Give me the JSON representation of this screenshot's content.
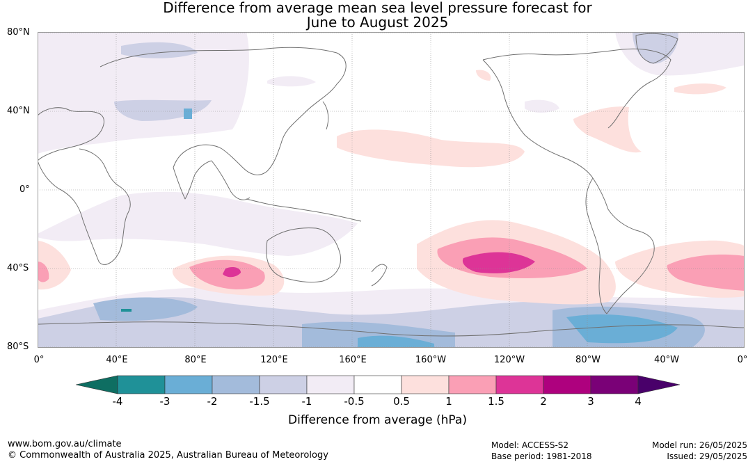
{
  "title_line1": "Difference from average mean sea level pressure forecast for",
  "title_line2": "June to August 2025",
  "lat_labels": [
    "80°N",
    "40°N",
    "0°",
    "40°S",
    "80°S"
  ],
  "lon_labels": [
    "0°",
    "40°E",
    "80°E",
    "120°E",
    "160°E",
    "160°W",
    "120°W",
    "80°W",
    "40°W",
    "0°"
  ],
  "colorbar": {
    "ticks": [
      "-4",
      "-3",
      "-2",
      "-1.5",
      "-1",
      "-0.5",
      "0.5",
      "1",
      "1.5",
      "2",
      "3",
      "4"
    ],
    "colors": [
      "#0e6e62",
      "#1f9198",
      "#6aaed6",
      "#a3bbdb",
      "#cdd0e5",
      "#f2ecf5",
      "#ffffff",
      "#fde0dd",
      "#fa9fb5",
      "#dd3497",
      "#ae017e",
      "#7a0177",
      "#49006a"
    ],
    "label": "Difference from average (hPa)"
  },
  "footer": {
    "url": "www.bom.gov.au/climate",
    "copyright": "© Commonwealth of Australia 2025, Australian Bureau of Meteorology",
    "model": "Model: ACCESS-S2",
    "base_period": "Base period: 1981-2018",
    "model_run": "Model run: 26/05/2025",
    "issued": "Issued: 29/05/2025"
  }
}
